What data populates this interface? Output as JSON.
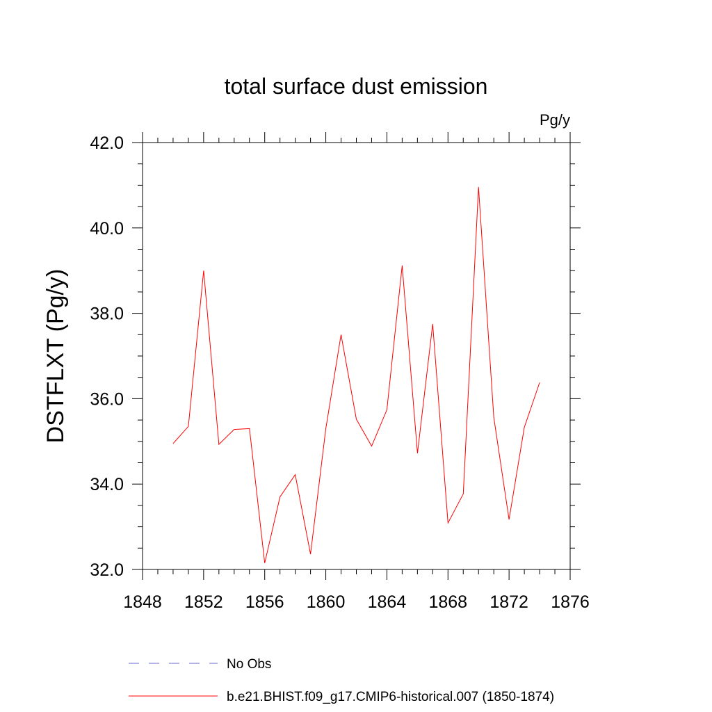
{
  "chart_data": {
    "type": "line",
    "title": "total surface dust emission",
    "units_label": "Pg/y",
    "ylabel": "DSTFLXT  (Pg/y)",
    "xlabel": "",
    "xlim": [
      1848,
      1876
    ],
    "ylim": [
      32.0,
      42.0
    ],
    "x_ticks": [
      1848,
      1852,
      1856,
      1860,
      1864,
      1868,
      1872,
      1876
    ],
    "y_ticks": [
      "32.0",
      "34.0",
      "36.0",
      "38.0",
      "40.0",
      "42.0"
    ],
    "grid": false,
    "legend_position": "bottom",
    "series": [
      {
        "name": "b.e21.BHIST.f09_g17.CMIP6-historical.007 (1850-1874)",
        "color": "#ff0000",
        "style": "solid",
        "x": [
          1850,
          1851,
          1852,
          1853,
          1854,
          1855,
          1856,
          1857,
          1858,
          1859,
          1860,
          1861,
          1862,
          1863,
          1864,
          1865,
          1866,
          1867,
          1868,
          1869,
          1870,
          1871,
          1872,
          1873,
          1874
        ],
        "y": [
          34.95,
          35.35,
          39.0,
          34.93,
          35.28,
          35.3,
          32.15,
          33.7,
          34.22,
          32.36,
          35.3,
          37.5,
          35.52,
          34.89,
          35.74,
          39.12,
          34.72,
          37.75,
          33.09,
          33.77,
          40.96,
          35.56,
          33.17,
          35.33,
          36.38
        ]
      }
    ],
    "legend": [
      {
        "label": "No Obs",
        "color": "#6a6ad0",
        "style": "dashed"
      },
      {
        "label": "b.e21.BHIST.f09_g17.CMIP6-historical.007 (1850-1874)",
        "color": "#ff0000",
        "style": "solid"
      }
    ]
  }
}
